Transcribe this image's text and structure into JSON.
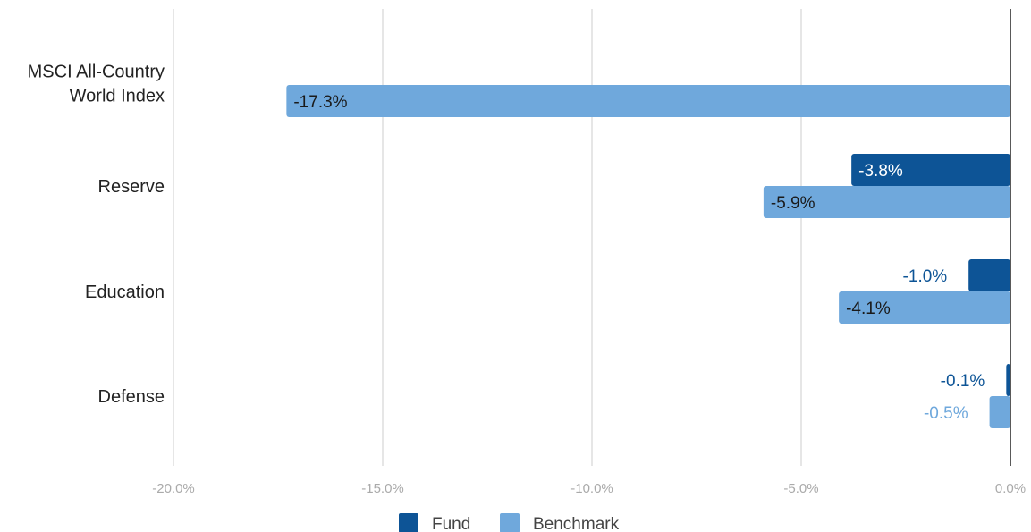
{
  "chart_data": {
    "type": "bar",
    "orientation": "horizontal",
    "categories": [
      [
        "MSCI All-Country",
        "World Index"
      ],
      [
        "Reserve"
      ],
      [
        "Education"
      ],
      [
        "Defense"
      ]
    ],
    "series": [
      {
        "name": "Fund",
        "color": "#0d5496",
        "values": [
          null,
          -3.8,
          -1.0,
          -0.1
        ],
        "labels": [
          "",
          "-3.8%",
          "-1.0%",
          "-0.1%"
        ]
      },
      {
        "name": "Benchmark",
        "color": "#6fa8dc",
        "values": [
          -17.3,
          -5.9,
          -4.1,
          -0.5
        ],
        "labels": [
          "-17.3%",
          "-5.9%",
          "-4.1%",
          "-0.5%"
        ]
      }
    ],
    "xlim": [
      -20,
      0
    ],
    "ticks": [
      -20,
      -15,
      -10,
      -5,
      0
    ],
    "tick_labels": [
      "-20.0%",
      "-15.0%",
      "-10.0%",
      "-5.0%",
      "0.0%"
    ],
    "grid": true,
    "legend_position": "bottom",
    "title": "",
    "xlabel": "",
    "ylabel": ""
  }
}
